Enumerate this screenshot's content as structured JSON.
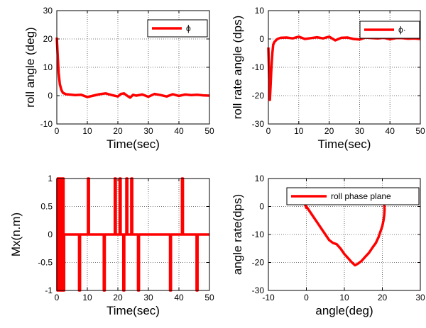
{
  "chart_data": [
    {
      "type": "line",
      "xlabel": "Time(sec)",
      "ylabel": "roll angle (deg)",
      "xlim": [
        0,
        50
      ],
      "ylim": [
        -10,
        30
      ],
      "xticks": [
        "0",
        "10",
        "20",
        "30",
        "40",
        "50"
      ],
      "yticks": [
        "-10",
        "0",
        "10",
        "20",
        "30"
      ],
      "grid": true,
      "legend_position": "top-right",
      "series": [
        {
          "name": "ϕ",
          "color": "#ff0000",
          "x": [
            0,
            0.3,
            0.6,
            1,
            1.5,
            2,
            3,
            4,
            6,
            8,
            10,
            12,
            14,
            16,
            18,
            20,
            21,
            22,
            23,
            24,
            25,
            26,
            28,
            30,
            32,
            34,
            36,
            38,
            40,
            42,
            44,
            46,
            48,
            50
          ],
          "y": [
            20.5,
            14,
            8,
            4,
            2,
            1,
            0.5,
            0.4,
            0.2,
            0.3,
            -0.5,
            0,
            0.5,
            0.8,
            0.2,
            -0.3,
            0.6,
            0.8,
            0,
            -0.7,
            0.3,
            0,
            0.4,
            -0.4,
            0.6,
            0.2,
            -0.3,
            0.5,
            -0.1,
            0.4,
            0.2,
            0.3,
            0.1,
            0
          ]
        }
      ]
    },
    {
      "type": "line",
      "xlabel": "Time(sec)",
      "ylabel": "roll rate angle (dps)",
      "xlim": [
        0,
        50
      ],
      "ylim": [
        -30,
        10
      ],
      "xticks": [
        "0",
        "10",
        "20",
        "30",
        "40",
        "50"
      ],
      "yticks": [
        "-30",
        "-20",
        "-10",
        "0",
        "10"
      ],
      "grid": true,
      "legend_position": "top-right",
      "series": [
        {
          "name": "ϕ·",
          "color": "#ff0000",
          "x": [
            0,
            0.3,
            0.5,
            0.7,
            1,
            1.3,
            1.6,
            2,
            2.5,
            3,
            4,
            6,
            8,
            10,
            12,
            14,
            16,
            18,
            20,
            22,
            24,
            26,
            28,
            30,
            32,
            34,
            36,
            38,
            40,
            42,
            44,
            46,
            48,
            50
          ],
          "y": [
            -3,
            -15,
            -21.5,
            -17,
            -10,
            -5,
            -2,
            -1,
            -0.5,
            0,
            0.4,
            0.5,
            0.2,
            0.8,
            0,
            0.3,
            0.6,
            0.2,
            0.8,
            -0.5,
            0.4,
            0.5,
            0,
            -0.2,
            0.5,
            0.3,
            0.2,
            0.4,
            -0.1,
            0.3,
            0.3,
            0.1,
            0.2,
            0
          ]
        }
      ]
    },
    {
      "type": "line",
      "xlabel": "Time(sec)",
      "ylabel": "Mx(n.m)",
      "xlim": [
        0,
        50
      ],
      "ylim": [
        -1,
        1
      ],
      "xticks": [
        "0",
        "10",
        "20",
        "30",
        "40",
        "50"
      ],
      "yticks": [
        "-1",
        "-0.5",
        "0",
        "0.5",
        "1"
      ],
      "grid": true,
      "series": [
        {
          "name": "",
          "color": "#ff0000",
          "x": [
            0,
            0.2,
            0.2,
            0.4,
            0.4,
            0.6,
            0.6,
            0.8,
            0.8,
            1.0,
            1.0,
            1.2,
            1.2,
            1.4,
            1.4,
            1.6,
            1.6,
            1.8,
            1.8,
            2.0,
            2.0,
            2.2,
            2.2,
            2.4,
            2.4,
            7.3,
            7.3,
            7.6,
            7.6,
            10.2,
            10.2,
            10.5,
            10.5,
            15.4,
            15.4,
            15.7,
            15.7,
            19.0,
            19.0,
            19.3,
            19.3,
            20.6,
            20.6,
            20.9,
            20.9,
            21.8,
            21.8,
            22.1,
            22.1,
            22.8,
            22.8,
            23.1,
            23.1,
            24.4,
            24.4,
            24.7,
            24.7,
            26.6,
            26.6,
            26.9,
            26.9,
            37.1,
            37.1,
            37.4,
            37.4,
            41.0,
            41.0,
            41.3,
            41.3,
            45.8,
            45.8,
            46.1,
            46.1,
            50
          ],
          "y": [
            1,
            1,
            -1,
            -1,
            1,
            1,
            -1,
            -1,
            1,
            1,
            -1,
            -1,
            1,
            1,
            -1,
            -1,
            1,
            1,
            -1,
            -1,
            1,
            1,
            -1,
            -1,
            0,
            0,
            -1,
            -1,
            0,
            0,
            1,
            1,
            0,
            0,
            -1,
            -1,
            0,
            0,
            1,
            1,
            0,
            0,
            1,
            1,
            0,
            0,
            -1,
            -1,
            0,
            0,
            1,
            1,
            0,
            0,
            1,
            1,
            0,
            0,
            -1,
            -1,
            0,
            0,
            -1,
            -1,
            0,
            0,
            1,
            1,
            0,
            0,
            -1,
            -1,
            0,
            0
          ]
        }
      ]
    },
    {
      "type": "line",
      "xlabel": "angle(deg)",
      "ylabel": "angle rate(dps)",
      "xlim": [
        -10,
        30
      ],
      "ylim": [
        -30,
        10
      ],
      "xticks": [
        "-10",
        "0",
        "10",
        "20",
        "30"
      ],
      "yticks": [
        "-30",
        "-20",
        "-10",
        "0",
        "10"
      ],
      "grid": true,
      "legend_position": "top-right",
      "series": [
        {
          "name": "roll phase plane",
          "color": "#ff0000",
          "x": [
            20.5,
            20.6,
            20.5,
            20.3,
            20,
            19.5,
            19,
            18.3,
            17.5,
            16.5,
            15.5,
            14.5,
            13.5,
            12.8,
            12,
            11,
            10,
            9,
            8,
            7,
            6,
            5,
            4,
            3,
            2,
            1,
            0.5,
            0,
            -0.3,
            0,
            0.3
          ],
          "y": [
            0.5,
            -1,
            -3,
            -5,
            -7,
            -9,
            -11,
            -13,
            -14.5,
            -16.5,
            -18,
            -19.5,
            -20.5,
            -21,
            -20,
            -18.5,
            -17,
            -15,
            -13.5,
            -13,
            -12,
            -10,
            -8,
            -6,
            -4,
            -2,
            -1,
            0,
            0.5,
            -0.5,
            0
          ]
        }
      ]
    }
  ]
}
